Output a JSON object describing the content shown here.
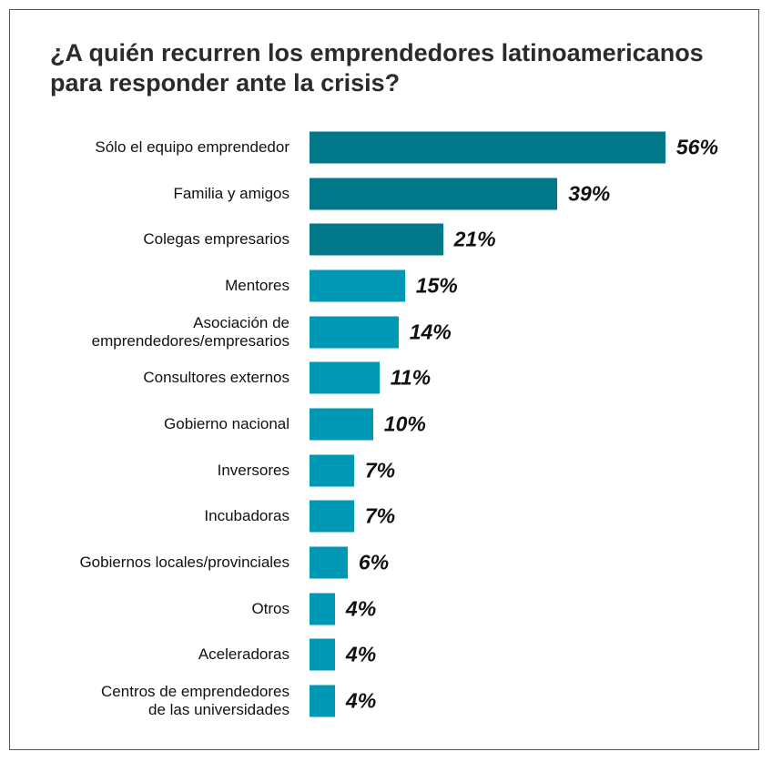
{
  "chart_data": {
    "type": "bar",
    "orientation": "horizontal",
    "title": "¿A quién recurren los emprendedores latinoamericanos para responder ante la crisis?",
    "categories": [
      "Sólo el equipo emprendedor",
      "Familia y amigos",
      "Colegas empresarios",
      "Mentores",
      "Asociación de\nemprendedores/empresarios",
      "Consultores externos",
      "Gobierno nacional",
      "Inversores",
      "Incubadoras",
      "Gobiernos locales/provinciales",
      "Otros",
      "Aceleradoras",
      "Centros de emprendedores\nde las universidades"
    ],
    "values": [
      56,
      39,
      21,
      15,
      14,
      11,
      10,
      7,
      7,
      6,
      4,
      4,
      4
    ],
    "value_labels": [
      "56%",
      "39%",
      "21%",
      "15%",
      "14%",
      "11%",
      "10%",
      "7%",
      "7%",
      "6%",
      "4%",
      "4%",
      "4%"
    ],
    "colors": [
      "#00788a",
      "#00788a",
      "#00788a",
      "#0099b5",
      "#0099b5",
      "#0099b5",
      "#0099b5",
      "#0099b5",
      "#0099b5",
      "#0099b5",
      "#0099b5",
      "#0099b5",
      "#0099b5"
    ]
  }
}
